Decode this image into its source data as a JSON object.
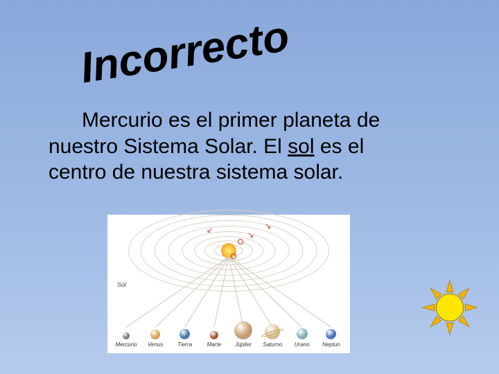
{
  "title": "Incorrecto",
  "body": {
    "line1_pre": "Mercurio es el primer planeta de",
    "line2_pre": "nuestro Sistema Solar. El ",
    "underlined": "sol",
    "line2_post": " es el",
    "line3": "centro de nuestra sistema solar."
  },
  "diagram": {
    "sol_label": "Sol",
    "orbit_color": "#d8d2c2",
    "marker_color": "#c0392b",
    "connector_color": "#cfc8b6",
    "planets": [
      {
        "name": "Mercurio",
        "size": 10,
        "color": "#7d6a55"
      },
      {
        "name": "Venus",
        "size": 14,
        "color": "#d8a24a"
      },
      {
        "name": "Tierra",
        "size": 15,
        "color": "#3a6fa8"
      },
      {
        "name": "Marte",
        "size": 12,
        "color": "#a64a2c"
      },
      {
        "name": "Júpiter",
        "size": 26,
        "color": "#c79a6b"
      },
      {
        "name": "Saturno",
        "size": 22,
        "color": "#d8c28a"
      },
      {
        "name": "Urano",
        "size": 16,
        "color": "#7faeb4"
      },
      {
        "name": "Neptun",
        "size": 15,
        "color": "#3f69b5"
      }
    ]
  },
  "sun_icon": {
    "fill": "#ffe600",
    "stroke": "#b08400",
    "ray_fill": "#f5b400"
  },
  "colors": {
    "background_top": "#8aa8db",
    "background_bottom": "#b5cbed",
    "text": "#000000"
  }
}
